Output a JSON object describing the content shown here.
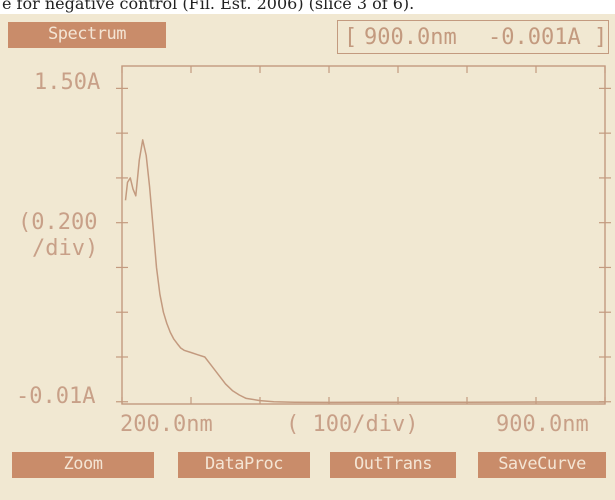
{
  "caption": "e for negative control (Fil. Est. 2006) (slice 3 of 6).",
  "header": {
    "mode_label": "Spectrum",
    "readout_wavelength": "900.0nm",
    "readout_absorbance": "-0.001A"
  },
  "axes": {
    "y_top_label": "1.50A",
    "y_scale_label_line1": "(0.200",
    "y_scale_label_line2": "/div)",
    "y_bottom_label": "-0.01A",
    "x_left_label": "200.0nm",
    "x_scale_label": "( 100/div)",
    "x_right_label": "900.0nm"
  },
  "softkeys": [
    {
      "label": "Zoom"
    },
    {
      "label": "DataProc"
    },
    {
      "label": "OutTrans"
    },
    {
      "label": "SaveCurve"
    }
  ],
  "colors": {
    "ink": "#c39a7f",
    "highlight": "#c98c6a",
    "paper": "#f1e8d2"
  },
  "chart_data": {
    "type": "line",
    "title": "",
    "xlabel": "",
    "ylabel": "",
    "xlim": [
      200,
      900
    ],
    "ylim": [
      -0.01,
      1.5
    ],
    "x_tick_step": 100,
    "y_tick_step": 0.2,
    "grid": false,
    "series": [
      {
        "x": [
          205,
          208,
          212,
          216,
          220,
          225,
          230,
          235,
          240,
          245,
          250,
          255,
          260,
          265,
          270,
          275,
          280,
          285,
          290,
          300,
          310,
          320,
          330,
          340,
          350,
          360,
          370,
          380,
          400,
          420,
          450,
          500,
          550,
          600,
          700,
          800,
          900
        ],
        "y": [
          0.9,
          0.98,
          1.0,
          0.95,
          0.92,
          1.08,
          1.17,
          1.1,
          0.96,
          0.78,
          0.6,
          0.48,
          0.4,
          0.35,
          0.31,
          0.28,
          0.26,
          0.24,
          0.23,
          0.22,
          0.21,
          0.2,
          0.16,
          0.12,
          0.08,
          0.05,
          0.03,
          0.015,
          0.005,
          0.0,
          -0.002,
          -0.003,
          -0.002,
          -0.002,
          -0.002,
          -0.001,
          -0.001
        ]
      }
    ]
  }
}
